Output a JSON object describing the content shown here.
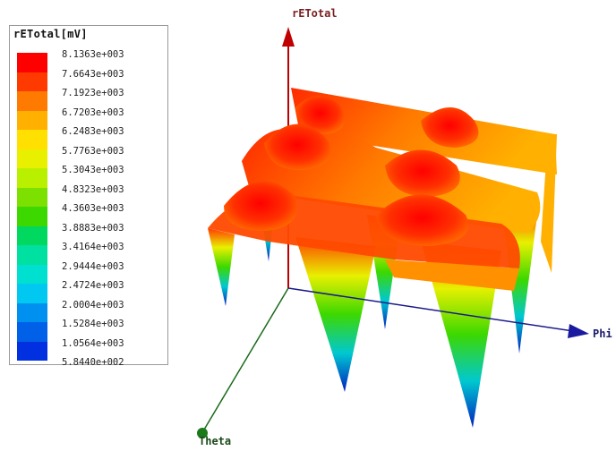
{
  "chart_data": {
    "type": "surface3d",
    "legend": {
      "title": "rETotal[mV]",
      "ticks": [
        "8.1363e+003",
        "7.6643e+003",
        "7.1923e+003",
        "6.7203e+003",
        "6.2483e+003",
        "5.7763e+003",
        "5.3043e+003",
        "4.8323e+003",
        "4.3603e+003",
        "3.8883e+003",
        "3.4164e+003",
        "2.9444e+003",
        "2.4724e+003",
        "2.0004e+003",
        "1.5284e+003",
        "1.0564e+003",
        "5.8440e+002"
      ],
      "colors": [
        "#ff0000",
        "#ff3a00",
        "#ff7a00",
        "#ffb000",
        "#ffe000",
        "#e8f000",
        "#b8f000",
        "#7ce000",
        "#3cd800",
        "#00d860",
        "#00e0a0",
        "#00e0d0",
        "#00c8f0",
        "#0090f0",
        "#0060e8",
        "#0030e0"
      ]
    },
    "axes": {
      "z": "rETotal",
      "x": "Phi",
      "y": "Theta"
    },
    "zlim": [
      584.4,
      8136.3
    ]
  }
}
